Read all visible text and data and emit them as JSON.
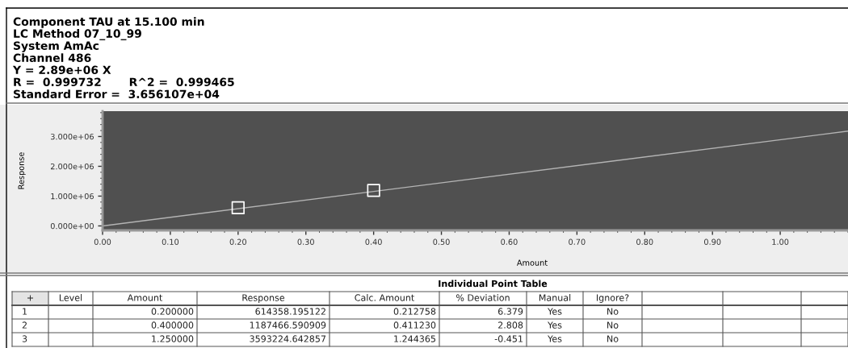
{
  "chart_data": [
    {
      "type": "scatter",
      "title": "Component TAU at 15.100 min",
      "annotations": [
        "LC Method 07_10_99",
        "System AmAc",
        "Channel 486",
        "Y = 2.89e+06 X",
        "R =  0.999732       R^2 =  0.999465",
        "Standard Error =  3.656107e+04"
      ],
      "xlabel": "Amount",
      "ylabel": "Response",
      "xlim": [
        0,
        1.1
      ],
      "ylim": [
        -150000,
        3850000
      ],
      "xticks": [
        {
          "value": 0,
          "label": "0.00"
        },
        {
          "value": 0.1,
          "label": "0.10"
        },
        {
          "value": 0.2,
          "label": "0.20"
        },
        {
          "value": 0.3,
          "label": "0.30"
        },
        {
          "value": 0.4,
          "label": "0.40"
        },
        {
          "value": 0.5,
          "label": "0.50"
        },
        {
          "value": 0.6,
          "label": "0.60"
        },
        {
          "value": 0.7,
          "label": "0.70"
        },
        {
          "value": 0.8,
          "label": "0.80"
        },
        {
          "value": 0.9,
          "label": "0.90"
        },
        {
          "value": 1.0,
          "label": "1.00"
        }
      ],
      "yticks": [
        {
          "value": 0,
          "label": "0.000e+00"
        },
        {
          "value": 1000000,
          "label": "1.000e+06"
        },
        {
          "value": 2000000,
          "label": "2.000e+06"
        },
        {
          "value": 3000000,
          "label": "3.000e+06"
        }
      ],
      "series": [
        {
          "type": "line",
          "color": "#b4b4b4",
          "marker": "none",
          "x": [
            0,
            1.1
          ],
          "values": [
            0,
            3180000
          ]
        },
        {
          "type": "scatter",
          "color": "#ffffff",
          "marker": "square",
          "x": [
            0.2,
            0.4
          ],
          "values": [
            610000,
            1190000
          ]
        }
      ]
    },
    {
      "type": "other",
      "title": "Individual Point Table",
      "annotations": [
        "+",
        "Level",
        "Amount",
        "Response",
        "Calc. Amount",
        "% Deviation",
        "Manual",
        "Ignore?",
        "1",
        null,
        "0.200000",
        "614358.195122",
        "0.212758",
        "6.379",
        "Yes",
        "No",
        "2",
        null,
        "0.400000",
        "1187466.590909",
        "0.411230",
        "2.808",
        "Yes",
        "No",
        "3",
        null,
        "1.250000",
        "3593224.642857",
        "1.244365",
        "-0.451",
        "Yes",
        "No"
      ]
    }
  ]
}
